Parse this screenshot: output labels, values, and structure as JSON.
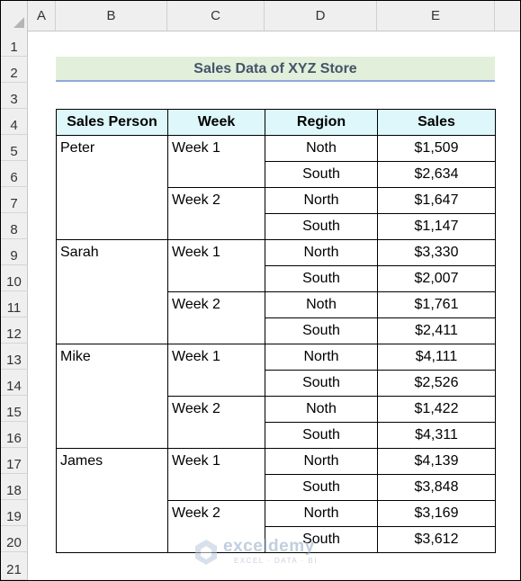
{
  "columns": [
    "A",
    "B",
    "C",
    "D",
    "E"
  ],
  "rows": [
    "1",
    "2",
    "3",
    "4",
    "5",
    "6",
    "7",
    "8",
    "9",
    "10",
    "11",
    "12",
    "13",
    "14",
    "15",
    "16",
    "17",
    "18",
    "19",
    "20",
    "21"
  ],
  "title": "Sales Data of XYZ Store",
  "headers": {
    "person": "Sales Person",
    "week": "Week",
    "region": "Region",
    "sales": "Sales"
  },
  "people": [
    {
      "name": "Peter",
      "weeks": [
        {
          "label": "Week 1",
          "rows": [
            {
              "region": "Noth",
              "sales": "$1,509"
            },
            {
              "region": "South",
              "sales": "$2,634"
            }
          ]
        },
        {
          "label": "Week 2",
          "rows": [
            {
              "region": "North",
              "sales": "$1,647"
            },
            {
              "region": "South",
              "sales": "$1,147"
            }
          ]
        }
      ]
    },
    {
      "name": "Sarah",
      "weeks": [
        {
          "label": "Week 1",
          "rows": [
            {
              "region": "North",
              "sales": "$3,330"
            },
            {
              "region": "South",
              "sales": "$2,007"
            }
          ]
        },
        {
          "label": "Week 2",
          "rows": [
            {
              "region": "Noth",
              "sales": "$1,761"
            },
            {
              "region": "South",
              "sales": "$2,411"
            }
          ]
        }
      ]
    },
    {
      "name": "Mike",
      "weeks": [
        {
          "label": "Week 1",
          "rows": [
            {
              "region": "North",
              "sales": "$4,111"
            },
            {
              "region": "South",
              "sales": "$2,526"
            }
          ]
        },
        {
          "label": "Week 2",
          "rows": [
            {
              "region": "Noth",
              "sales": "$1,422"
            },
            {
              "region": "South",
              "sales": "$4,311"
            }
          ]
        }
      ]
    },
    {
      "name": "James",
      "weeks": [
        {
          "label": "Week 1",
          "rows": [
            {
              "region": "North",
              "sales": "$4,139"
            },
            {
              "region": "South",
              "sales": "$3,848"
            }
          ]
        },
        {
          "label": "Week 2",
          "rows": [
            {
              "region": "North",
              "sales": "$3,169"
            },
            {
              "region": "South",
              "sales": "$3,612"
            }
          ]
        }
      ]
    }
  ],
  "watermark": {
    "name": "exceldemy",
    "tagline": "EXCEL · DATA · BI"
  }
}
